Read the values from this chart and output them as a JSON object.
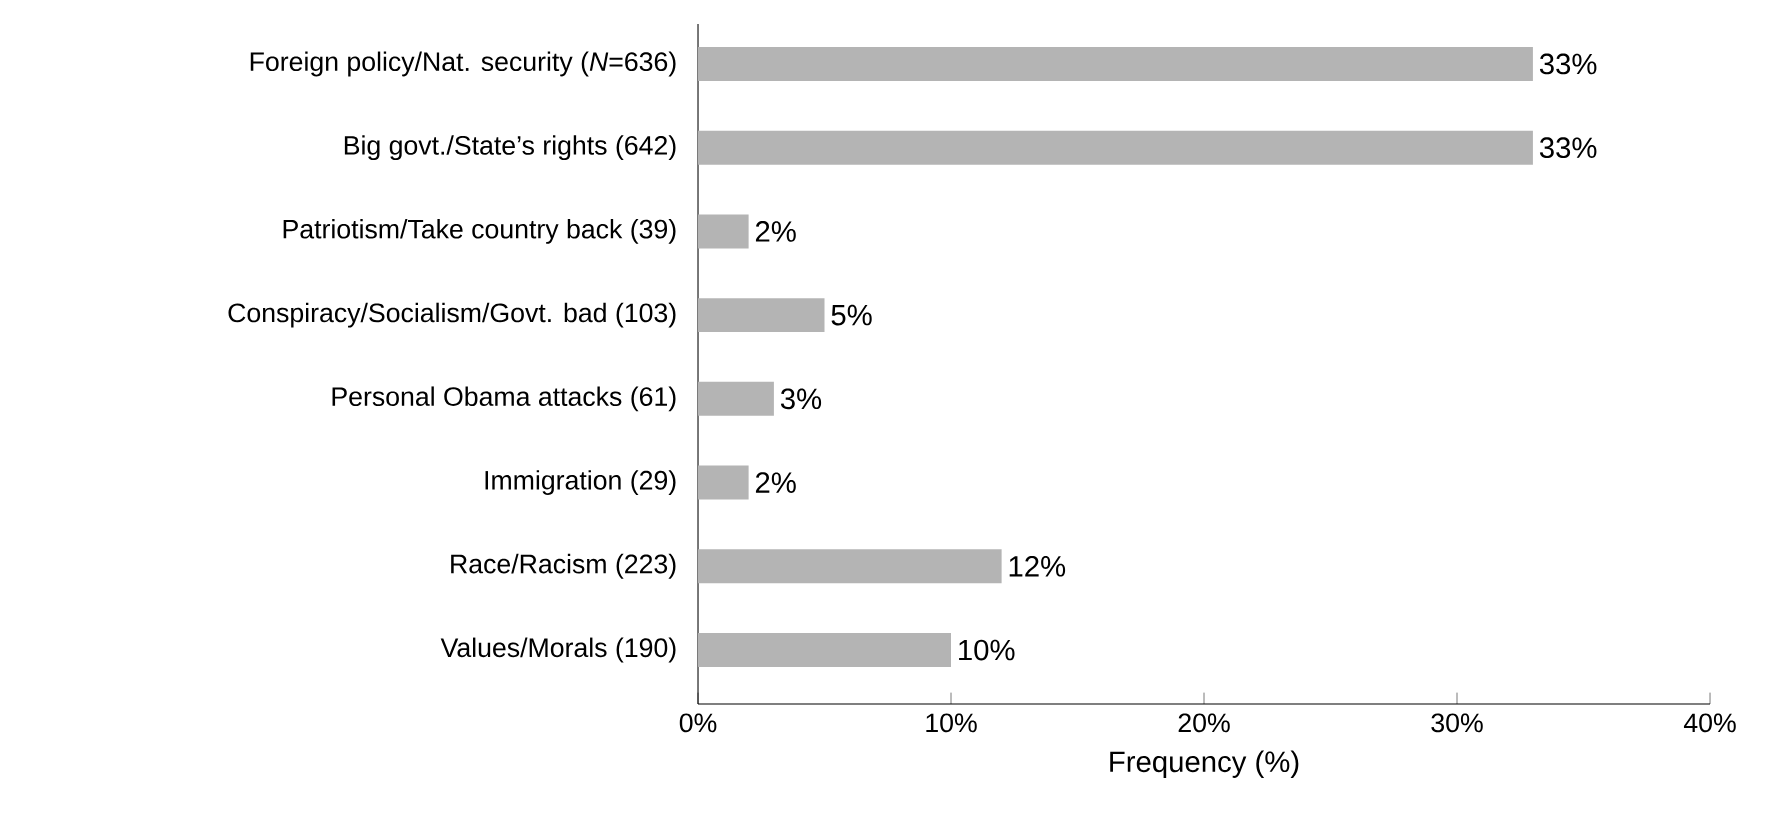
{
  "chart_data": {
    "type": "bar",
    "orientation": "horizontal",
    "xlabel": "Frequency (%)",
    "categories": [
      "Foreign policy/Nat. security (*N*=636)",
      "Big govt./State’s rights (642)",
      "Patriotism/Take country back (39)",
      "Conspiracy/Socialism/Govt. bad (103)",
      "Personal Obama attacks (61)",
      "Immigration (29)",
      "Race/Racism (223)",
      "Values/Morals (190)"
    ],
    "values": [
      33,
      33,
      2,
      5,
      3,
      2,
      12,
      10
    ],
    "value_labels": [
      "33%",
      "33%",
      "2%",
      "5%",
      "3%",
      "2%",
      "12%",
      "10%"
    ],
    "color": "#b4b4b4",
    "xlim": [
      0,
      40
    ],
    "xticks": [
      {
        "value": 0,
        "label": "0%"
      },
      {
        "value": 10,
        "label": "10%"
      },
      {
        "value": 20,
        "label": "20%"
      },
      {
        "value": 30,
        "label": "30%"
      },
      {
        "value": 40,
        "label": "40%"
      }
    ]
  }
}
